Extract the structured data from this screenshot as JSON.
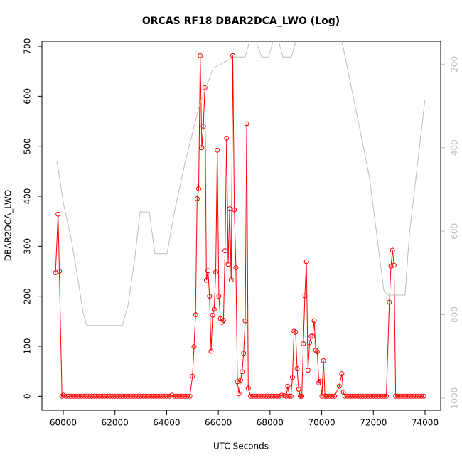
{
  "chart_data": {
    "type": "line",
    "title": "ORCAS RF18 DBAR2DCA_LWO (Log)",
    "x_label": "UTC Seconds",
    "y_label": "DBAR2DCA_LWO",
    "xlim": [
      59175,
      74605
    ],
    "ylim": [
      -28,
      710
    ],
    "y2lim": [
      1029,
      145
    ],
    "xticks": [
      60000,
      62000,
      64000,
      66000,
      68000,
      70000,
      72000,
      74000
    ],
    "yticks": [
      0,
      100,
      200,
      300,
      400,
      500,
      600,
      700
    ],
    "y2ticks": [
      200,
      400,
      600,
      800,
      1000
    ],
    "series": [
      {
        "color": "#ff0000",
        "markers": true,
        "x": [
          59700,
          59800,
          59850,
          59950,
          60000,
          60100,
          60200,
          60300,
          60400,
          60500,
          60600,
          60700,
          60800,
          60900,
          61000,
          61100,
          61200,
          61300,
          61400,
          61500,
          61600,
          61700,
          61800,
          61900,
          62000,
          62100,
          62200,
          62300,
          62400,
          62500,
          62600,
          62700,
          62800,
          62900,
          63000,
          63100,
          63200,
          63300,
          63400,
          63500,
          63600,
          63700,
          63800,
          63900,
          64000,
          64100,
          64200,
          64300,
          64400,
          64500,
          64600,
          64700,
          64800,
          64900,
          65000,
          65060,
          65120,
          65180,
          65240,
          65300,
          65360,
          65420,
          65480,
          65540,
          65600,
          65660,
          65720,
          65780,
          65840,
          65900,
          65960,
          66020,
          66080,
          66140,
          66200,
          66260,
          66320,
          66380,
          66440,
          66500,
          66560,
          66620,
          66680,
          66740,
          66800,
          66860,
          66920,
          66980,
          67040,
          67100,
          67160,
          67250,
          67350,
          67450,
          67550,
          67650,
          67750,
          67850,
          67950,
          68050,
          68150,
          68250,
          68350,
          68450,
          68550,
          68630,
          68690,
          68750,
          68810,
          68870,
          68930,
          68990,
          69050,
          69110,
          69170,
          69230,
          69290,
          69350,
          69410,
          69470,
          69530,
          69590,
          69650,
          69710,
          69770,
          69830,
          69890,
          69950,
          70010,
          70070,
          70130,
          70200,
          70300,
          70400,
          70500,
          70680,
          70780,
          70840,
          70900,
          71000,
          71100,
          71200,
          71300,
          71400,
          71500,
          71600,
          71700,
          71800,
          71900,
          72000,
          72100,
          72200,
          72300,
          72400,
          72500,
          72620,
          72680,
          72740,
          72800,
          72860,
          72950,
          73050,
          73150,
          73250,
          73350,
          73450,
          73550,
          73650,
          73750,
          73850,
          73950
        ],
        "values": [
          247,
          364,
          250,
          0,
          2,
          0,
          0,
          0,
          0,
          0,
          0,
          0,
          0,
          0,
          0,
          0,
          0,
          0,
          0,
          0,
          0,
          0,
          0,
          0,
          0,
          0,
          0,
          0,
          0,
          0,
          0,
          0,
          0,
          0,
          0,
          0,
          0,
          0,
          0,
          0,
          0,
          0,
          0,
          0,
          0,
          0,
          2,
          0,
          0,
          0,
          0,
          0,
          0,
          0,
          40,
          99,
          163,
          395,
          415,
          681,
          497,
          540,
          617,
          232,
          251,
          200,
          90,
          162,
          174,
          248,
          492,
          200,
          155,
          148,
          152,
          291,
          516,
          264,
          375,
          233,
          681,
          373,
          257,
          29,
          5,
          32,
          49,
          86,
          151,
          545,
          16,
          0,
          0,
          0,
          0,
          0,
          0,
          0,
          0,
          0,
          0,
          0,
          0,
          2,
          1,
          0,
          20,
          0,
          0,
          38,
          130,
          128,
          55,
          14,
          0,
          0,
          105,
          201,
          269,
          52,
          107,
          120,
          120,
          151,
          92,
          89,
          27,
          30,
          0,
          71,
          0,
          0,
          0,
          0,
          0,
          20,
          45,
          8,
          0,
          0,
          0,
          0,
          0,
          0,
          0,
          0,
          0,
          0,
          0,
          0,
          0,
          0,
          0,
          0,
          0,
          188,
          260,
          292,
          262,
          0,
          0,
          0,
          0,
          0,
          0,
          0,
          0,
          0,
          0,
          0,
          0
        ]
      },
      {
        "color": "#bebebe",
        "axis": "y2",
        "markers": false,
        "x": [
          59752,
          60028,
          60303,
          60578,
          60770,
          60908,
          62283,
          62503,
          62778,
          62970,
          63328,
          63548,
          64015,
          64290,
          64703,
          65253,
          65803,
          66628,
          67040,
          67315,
          67673,
          67948,
          68223,
          68498,
          68828,
          69103,
          70698,
          71303,
          71853,
          72403,
          72540,
          73228,
          73393,
          73998
        ],
        "values": [
          431,
          540,
          617,
          719,
          796,
          826,
          826,
          779,
          660,
          554,
          554,
          654,
          654,
          557,
          438,
          302,
          209,
          183,
          183,
          120,
          183,
          183,
          120,
          183,
          183,
          120,
          120,
          302,
          472,
          741,
          753,
          753,
          608,
          285
        ]
      }
    ]
  }
}
